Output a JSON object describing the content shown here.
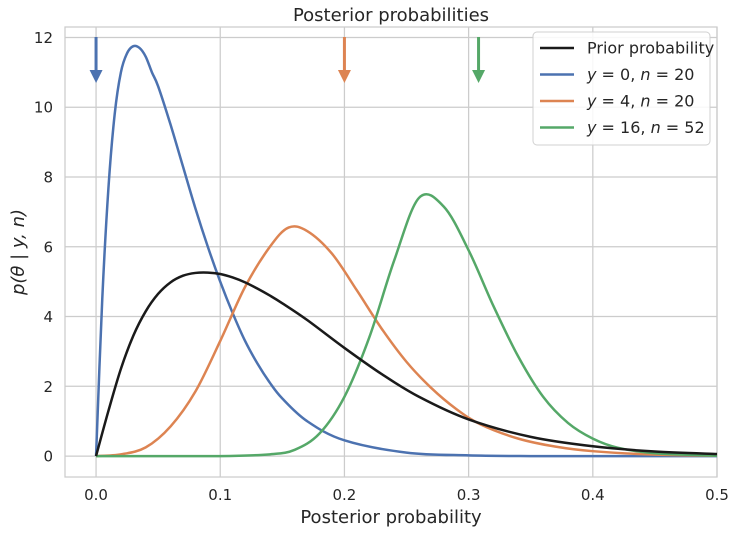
{
  "chart_data": {
    "type": "line",
    "title": "Posterior probabilities",
    "xlabel": "Posterior probability",
    "ylabel": "p(θ | y, n)",
    "xlim": [
      -0.025,
      0.5
    ],
    "ylim": [
      -0.6,
      12.3
    ],
    "xticks": [
      "0.0",
      "0.1",
      "0.2",
      "0.3",
      "0.4",
      "0.5"
    ],
    "xtick_values": [
      0.0,
      0.1,
      0.2,
      0.3,
      0.4,
      0.5
    ],
    "yticks": [
      "0",
      "2",
      "4",
      "6",
      "8",
      "10",
      "12"
    ],
    "ytick_values": [
      0,
      2,
      4,
      6,
      8,
      10,
      12
    ],
    "grid": true,
    "legend_position": "top-right",
    "series": [
      {
        "name": "Prior probability",
        "legend_parts": [
          {
            "t": "Prior probability",
            "it": false
          }
        ],
        "color": "#1a1a1a",
        "x": [
          0.0,
          0.01,
          0.02,
          0.03,
          0.04,
          0.05,
          0.06,
          0.07,
          0.08,
          0.09,
          0.1,
          0.11,
          0.12,
          0.13,
          0.14,
          0.15,
          0.17,
          0.2,
          0.23,
          0.26,
          0.3,
          0.35,
          0.4,
          0.45,
          0.5
        ],
        "values": [
          0.0,
          1.3,
          2.5,
          3.45,
          4.15,
          4.65,
          4.98,
          5.17,
          5.25,
          5.26,
          5.22,
          5.12,
          4.98,
          4.8,
          4.6,
          4.38,
          3.9,
          3.1,
          2.35,
          1.7,
          1.05,
          0.55,
          0.28,
          0.13,
          0.06
        ]
      },
      {
        "name": "y = 0, n = 20",
        "legend_parts": [
          {
            "t": "y",
            "it": true
          },
          {
            "t": " = 0, ",
            "it": false
          },
          {
            "t": "n",
            "it": true
          },
          {
            "t": " = 20",
            "it": false
          }
        ],
        "color": "#4c72b0",
        "arrow_x": 0.0,
        "x": [
          0.0,
          0.005,
          0.01,
          0.015,
          0.02,
          0.025,
          0.03,
          0.035,
          0.04,
          0.045,
          0.05,
          0.06,
          0.07,
          0.08,
          0.09,
          0.1,
          0.11,
          0.12,
          0.13,
          0.14,
          0.15,
          0.17,
          0.2,
          0.25,
          0.3,
          0.35,
          0.4,
          0.5
        ],
        "values": [
          0.0,
          4.5,
          7.7,
          9.8,
          11.0,
          11.55,
          11.75,
          11.7,
          11.45,
          11.0,
          10.6,
          9.5,
          8.3,
          7.1,
          6.0,
          5.0,
          4.1,
          3.3,
          2.65,
          2.1,
          1.65,
          1.0,
          0.45,
          0.1,
          0.02,
          0.0,
          0.0,
          0.0
        ]
      },
      {
        "name": "y = 4, n = 20",
        "legend_parts": [
          {
            "t": "y",
            "it": true
          },
          {
            "t": " = 4, ",
            "it": false
          },
          {
            "t": "n",
            "it": true
          },
          {
            "t": " = 20",
            "it": false
          }
        ],
        "color": "#dd8452",
        "arrow_x": 0.2,
        "x": [
          0.0,
          0.02,
          0.04,
          0.06,
          0.08,
          0.1,
          0.12,
          0.14,
          0.155,
          0.17,
          0.19,
          0.21,
          0.23,
          0.25,
          0.27,
          0.29,
          0.31,
          0.34,
          0.37,
          0.4,
          0.45,
          0.5
        ],
        "values": [
          0.0,
          0.05,
          0.25,
          0.85,
          1.85,
          3.3,
          4.85,
          6.0,
          6.55,
          6.45,
          5.8,
          4.75,
          3.65,
          2.7,
          1.95,
          1.35,
          0.9,
          0.5,
          0.27,
          0.14,
          0.04,
          0.01
        ]
      },
      {
        "name": "y = 16, n = 52",
        "legend_parts": [
          {
            "t": "y",
            "it": true
          },
          {
            "t": " = 16, ",
            "it": false
          },
          {
            "t": "n",
            "it": true
          },
          {
            "t": " = 52",
            "it": false
          }
        ],
        "color": "#55a868",
        "arrow_x": 0.308,
        "x": [
          0.0,
          0.1,
          0.14,
          0.16,
          0.18,
          0.2,
          0.22,
          0.24,
          0.26,
          0.28,
          0.3,
          0.32,
          0.34,
          0.36,
          0.38,
          0.4,
          0.42,
          0.45,
          0.5
        ],
        "values": [
          0.0,
          0.0,
          0.05,
          0.18,
          0.65,
          1.7,
          3.4,
          5.6,
          7.4,
          7.15,
          5.9,
          4.3,
          2.85,
          1.7,
          0.95,
          0.5,
          0.24,
          0.08,
          0.01
        ]
      }
    ]
  }
}
